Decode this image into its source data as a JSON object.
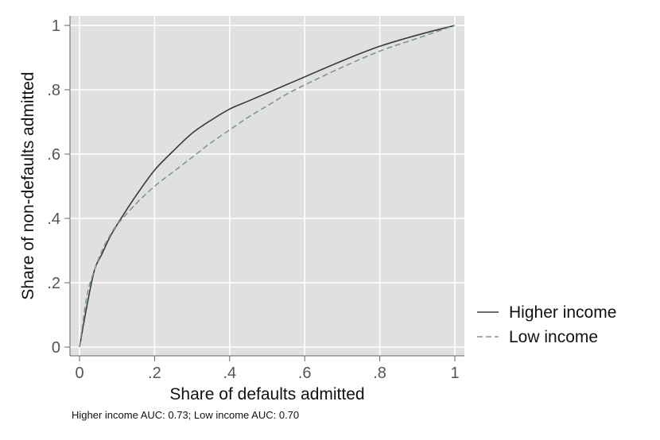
{
  "chart_data": {
    "type": "line",
    "xlabel": "Share of defaults admitted",
    "ylabel": "Share of non-defaults admitted",
    "xlim": [
      0,
      1
    ],
    "ylim": [
      0,
      1
    ],
    "x_ticks": [
      0,
      0.2,
      0.4,
      0.6,
      0.8,
      1
    ],
    "x_tick_labels": [
      "0",
      ".2",
      ".4",
      ".6",
      ".8",
      "1"
    ],
    "y_ticks": [
      0,
      0.2,
      0.4,
      0.6,
      0.8,
      1
    ],
    "y_tick_labels": [
      "0",
      ".2",
      ".4",
      ".6",
      ".8",
      "1"
    ],
    "grid": true,
    "legend_position": "right",
    "series": [
      {
        "name": "Higher income",
        "style": "solid",
        "color": "#3a3a3a",
        "x": [
          0,
          0.02,
          0.04,
          0.06,
          0.08,
          0.1,
          0.15,
          0.2,
          0.25,
          0.3,
          0.35,
          0.4,
          0.45,
          0.5,
          0.55,
          0.6,
          0.7,
          0.8,
          0.9,
          1
        ],
        "y": [
          0,
          0.13,
          0.24,
          0.29,
          0.34,
          0.38,
          0.47,
          0.55,
          0.61,
          0.665,
          0.705,
          0.74,
          0.765,
          0.79,
          0.815,
          0.84,
          0.89,
          0.935,
          0.97,
          1
        ]
      },
      {
        "name": "Low income",
        "style": "dashed",
        "color": "#7a9a8c",
        "x": [
          0,
          0.02,
          0.04,
          0.06,
          0.08,
          0.1,
          0.15,
          0.2,
          0.25,
          0.3,
          0.35,
          0.4,
          0.45,
          0.5,
          0.55,
          0.6,
          0.7,
          0.8,
          0.9,
          1
        ],
        "y": [
          0,
          0.16,
          0.24,
          0.3,
          0.345,
          0.38,
          0.445,
          0.5,
          0.545,
          0.59,
          0.635,
          0.675,
          0.715,
          0.75,
          0.785,
          0.815,
          0.87,
          0.92,
          0.96,
          1
        ]
      }
    ],
    "note": "Higher income AUC:  0.73; Low income AUC:  0.70"
  }
}
